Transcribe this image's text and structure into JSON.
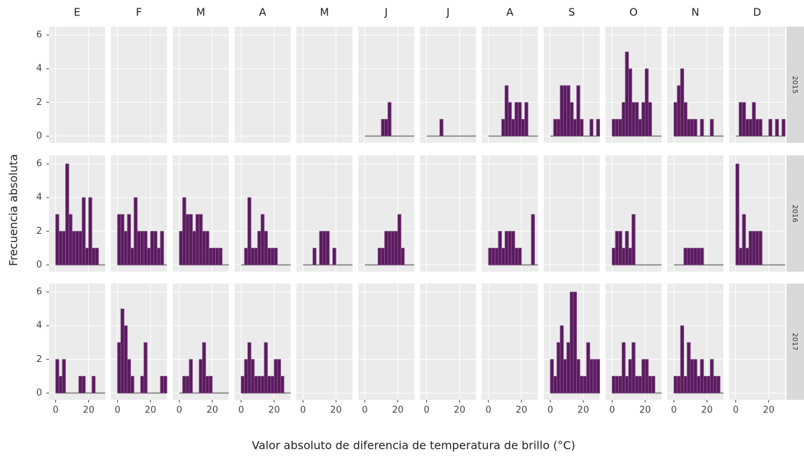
{
  "chart_data": {
    "type": "histogram",
    "x_label": "Valor absoluto de diferencia de temperatura de brillo (°C)",
    "y_label": "Frecuencia absoluta",
    "columns": [
      "E",
      "F",
      "M",
      "A",
      "M",
      "J",
      "J",
      "A",
      "S",
      "O",
      "N",
      "D"
    ],
    "rows": [
      "2015",
      "2016",
      "2017"
    ],
    "color": "#5a1a5e",
    "xlim": [
      -4,
      30
    ],
    "xticks": [
      0,
      20
    ],
    "ylim": [
      -0.4,
      6.5
    ],
    "yticks": [
      0,
      2,
      4,
      6
    ],
    "grid": true,
    "bins": [
      0,
      2,
      4,
      6,
      8,
      10,
      12,
      14,
      16,
      18,
      20,
      22,
      24,
      26,
      28,
      30
    ],
    "counts": [
      [
        null,
        null,
        null,
        null,
        null,
        [
          0,
          0,
          0,
          0,
          0,
          1,
          1,
          2,
          0,
          0,
          0,
          0,
          0,
          0,
          0
        ],
        [
          0,
          0,
          0,
          0,
          1,
          0,
          0,
          0,
          0,
          0,
          0,
          0,
          0,
          0,
          0
        ],
        [
          0,
          0,
          0,
          0,
          1,
          3,
          2,
          1,
          2,
          2,
          1,
          2,
          0,
          0,
          0
        ],
        [
          0,
          1,
          1,
          3,
          3,
          3,
          2,
          1,
          3,
          1,
          0,
          0,
          1,
          0,
          1
        ],
        [
          1,
          1,
          1,
          2,
          5,
          4,
          2,
          2,
          1,
          2,
          4,
          2,
          0,
          0,
          0
        ],
        [
          2,
          3,
          4,
          2,
          1,
          1,
          1,
          0,
          1,
          0,
          0,
          1,
          0,
          0,
          0
        ],
        [
          0,
          2,
          2,
          1,
          1,
          2,
          1,
          1,
          0,
          0,
          1,
          0,
          1,
          0,
          1
        ]
      ],
      [
        [
          3,
          2,
          2,
          6,
          3,
          2,
          2,
          2,
          4,
          1,
          4,
          1,
          1,
          0,
          0
        ],
        [
          3,
          3,
          2,
          3,
          1,
          4,
          2,
          2,
          2,
          1,
          2,
          2,
          1,
          2,
          0
        ],
        [
          2,
          4,
          3,
          3,
          2,
          3,
          3,
          2,
          2,
          1,
          1,
          1,
          1,
          0,
          0
        ],
        [
          0,
          1,
          4,
          1,
          1,
          2,
          3,
          2,
          1,
          1,
          1,
          0,
          0,
          0,
          0
        ],
        [
          0,
          0,
          0,
          1,
          0,
          2,
          2,
          2,
          0,
          1,
          0,
          0,
          0,
          0,
          0
        ],
        [
          0,
          0,
          0,
          0,
          1,
          1,
          2,
          2,
          2,
          2,
          3,
          1,
          0,
          0,
          0
        ],
        null,
        [
          1,
          1,
          1,
          2,
          1,
          2,
          2,
          2,
          1,
          1,
          0,
          0,
          0,
          3,
          0
        ],
        null,
        [
          1,
          2,
          2,
          1,
          2,
          1,
          3,
          0,
          0,
          0,
          0,
          0,
          0,
          0,
          0
        ],
        [
          0,
          0,
          0,
          1,
          1,
          1,
          1,
          1,
          1,
          0,
          0,
          0,
          0,
          0,
          0
        ],
        [
          6,
          1,
          3,
          1,
          2,
          2,
          2,
          2,
          0,
          0,
          0,
          0,
          0,
          0,
          0
        ]
      ],
      [
        [
          2,
          1,
          2,
          0,
          0,
          0,
          0,
          1,
          1,
          0,
          0,
          1,
          0,
          0,
          0
        ],
        [
          3,
          5,
          4,
          2,
          1,
          0,
          0,
          1,
          3,
          0,
          0,
          0,
          0,
          1,
          1
        ],
        [
          0,
          1,
          1,
          2,
          0,
          0,
          2,
          3,
          1,
          1,
          0,
          0,
          0,
          0,
          0
        ],
        [
          1,
          2,
          3,
          2,
          1,
          1,
          1,
          3,
          1,
          1,
          2,
          2,
          1,
          0,
          0
        ],
        null,
        null,
        null,
        null,
        [
          2,
          1,
          3,
          4,
          2,
          3,
          6,
          6,
          2,
          1,
          1,
          3,
          2,
          2,
          2
        ],
        [
          1,
          1,
          1,
          3,
          1,
          2,
          3,
          1,
          1,
          2,
          2,
          1,
          1,
          0,
          0
        ],
        [
          1,
          1,
          4,
          1,
          3,
          2,
          2,
          1,
          2,
          1,
          1,
          2,
          1,
          1,
          0
        ],
        null
      ]
    ]
  }
}
